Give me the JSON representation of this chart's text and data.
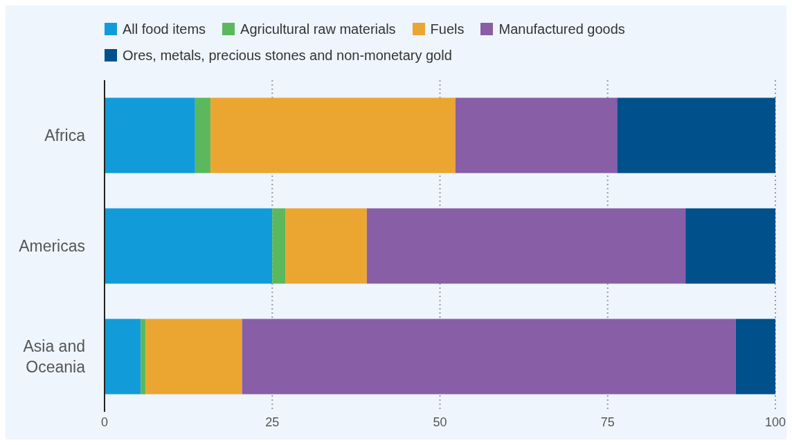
{
  "chart_data": {
    "type": "bar",
    "orientation": "horizontal",
    "stacked": true,
    "categories": [
      "Africa",
      "Americas",
      "Asia and Oceania"
    ],
    "series": [
      {
        "name": "All food items",
        "color": "#119cd9",
        "values": [
          13.5,
          25.0,
          5.4
        ]
      },
      {
        "name": "Agricultural raw materials",
        "color": "#5cb85c",
        "values": [
          2.3,
          2.0,
          0.7
        ]
      },
      {
        "name": "Fuels",
        "color": "#eba531",
        "values": [
          36.5,
          12.1,
          14.4
        ]
      },
      {
        "name": "Manufactured goods",
        "color": "#885ea7",
        "values": [
          24.1,
          47.5,
          73.6
        ]
      },
      {
        "name": "Ores, metals, precious stones and non-monetary gold",
        "color": "#00508c",
        "values": [
          23.6,
          13.4,
          5.9
        ]
      }
    ],
    "xlim": [
      0,
      100
    ],
    "xticks": [
      0,
      25,
      50,
      75,
      100
    ],
    "grid": "x",
    "legend": "top left"
  }
}
